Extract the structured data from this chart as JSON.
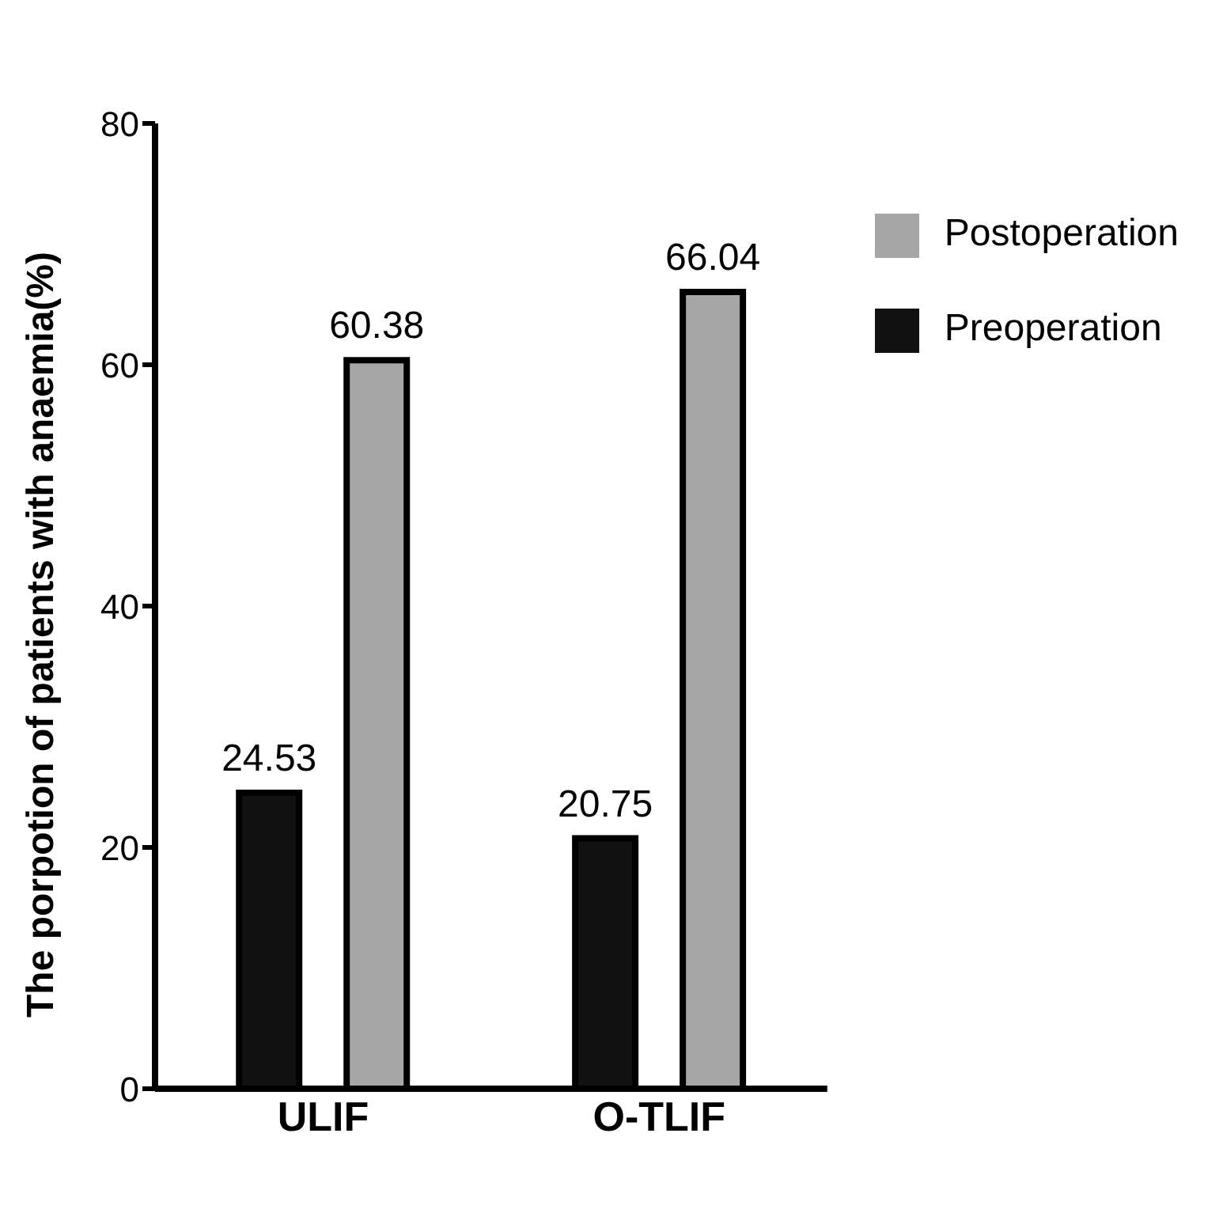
{
  "chart_data": {
    "type": "bar",
    "ylabel": "The porpotion of patients with anaemia(%)",
    "categories": [
      "ULIF",
      "O-TLIF"
    ],
    "series": [
      {
        "name": "Preoperation",
        "color": "#111111",
        "values": [
          24.53,
          20.75
        ]
      },
      {
        "name": "Postoperation",
        "color": "#a6a6a6",
        "values": [
          60.38,
          66.04
        ]
      }
    ],
    "ylim": [
      0,
      80
    ],
    "yticks": [
      0,
      20,
      40,
      60,
      80
    ],
    "grid": false,
    "legend": "top right",
    "data_labels": true
  }
}
